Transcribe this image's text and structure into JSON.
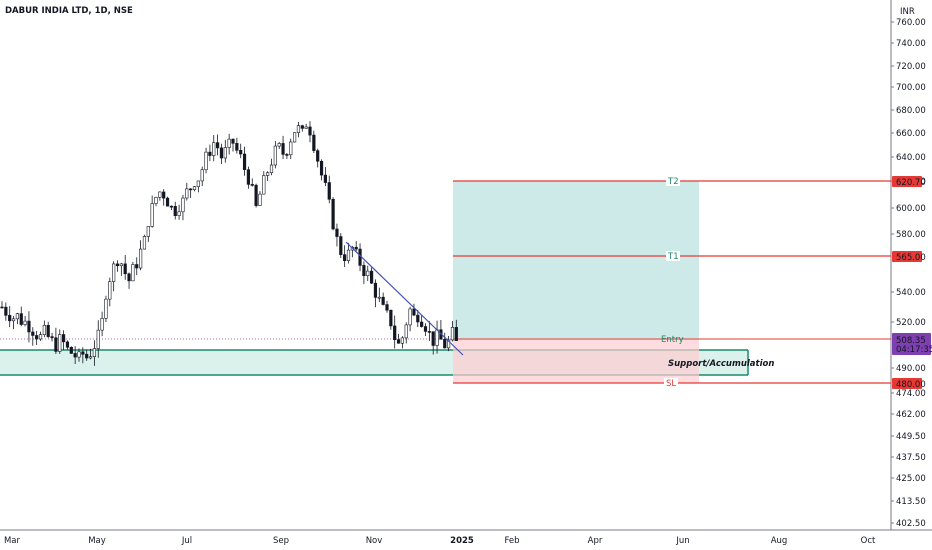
{
  "header": {
    "symbol": "DABUR INDIA LTD, 1D, NSE"
  },
  "price_axis": {
    "currency": "INR"
  },
  "colors": {
    "up": "#131722",
    "down": "#131722",
    "target_line": "#e53935",
    "target_zone": "#b2dfdb",
    "stop_zone": "#ffcdd2",
    "support_border": "#1b8a6b",
    "trendline": "#3f51b5",
    "last_price_badge": "#7e3fb0"
  },
  "chart_data": {
    "type": "candlestick",
    "title": "DABUR INDIA LTD, 1D, NSE",
    "currency": "INR",
    "y_ticks": [
      "402.50",
      "413.50",
      "425.00",
      "437.50",
      "449.50",
      "462.00",
      "474.00",
      "490.00",
      "520.00",
      "540.00",
      "580.00",
      "600.00",
      "620.00",
      "640.00",
      "660.00",
      "680.00",
      "700.00",
      "720.00",
      "740.00",
      "760.00"
    ],
    "x_ticks": [
      {
        "label": "Mar",
        "bold": false
      },
      {
        "label": "May",
        "bold": false
      },
      {
        "label": "Jul",
        "bold": false
      },
      {
        "label": "Sep",
        "bold": false
      },
      {
        "label": "Nov",
        "bold": false
      },
      {
        "label": "2025",
        "bold": true
      },
      {
        "label": "Feb",
        "bold": false
      },
      {
        "label": "Apr",
        "bold": false
      },
      {
        "label": "Jun",
        "bold": false
      },
      {
        "label": "Aug",
        "bold": false
      },
      {
        "label": "Oct",
        "bold": false
      }
    ],
    "price_path": [
      [
        0,
        530
      ],
      [
        1,
        527
      ],
      [
        2,
        525
      ],
      [
        3,
        523
      ],
      [
        4,
        524
      ],
      [
        5,
        521
      ],
      [
        6,
        520
      ],
      [
        7,
        518
      ],
      [
        8,
        515
      ],
      [
        9,
        512
      ],
      [
        10,
        510
      ],
      [
        11,
        513
      ],
      [
        12,
        510
      ],
      [
        13,
        507
      ],
      [
        14,
        505
      ],
      [
        15,
        508
      ],
      [
        16,
        506
      ],
      [
        17,
        502
      ],
      [
        18,
        500
      ],
      [
        19,
        498
      ],
      [
        20,
        496
      ],
      [
        21,
        499
      ],
      [
        22,
        497
      ],
      [
        23,
        500
      ],
      [
        24,
        505
      ],
      [
        25,
        510
      ],
      [
        26,
        520
      ],
      [
        27,
        540
      ],
      [
        28,
        550
      ],
      [
        29,
        557
      ],
      [
        30,
        563
      ],
      [
        31,
        560
      ],
      [
        32,
        553
      ],
      [
        33,
        548
      ],
      [
        34,
        555
      ],
      [
        35,
        560
      ],
      [
        36,
        568
      ],
      [
        37,
        575
      ],
      [
        38,
        590
      ],
      [
        39,
        600
      ],
      [
        40,
        608
      ],
      [
        41,
        612
      ],
      [
        42,
        610
      ],
      [
        43,
        605
      ],
      [
        44,
        600
      ],
      [
        45,
        598
      ],
      [
        46,
        602
      ],
      [
        47,
        605
      ],
      [
        48,
        612
      ],
      [
        49,
        615
      ],
      [
        50,
        620
      ],
      [
        51,
        622
      ],
      [
        52,
        630
      ],
      [
        53,
        640
      ],
      [
        54,
        645
      ],
      [
        55,
        652
      ],
      [
        56,
        648
      ],
      [
        57,
        640
      ],
      [
        58,
        645
      ],
      [
        59,
        650
      ],
      [
        60,
        652
      ],
      [
        61,
        645
      ],
      [
        62,
        640
      ],
      [
        63,
        630
      ],
      [
        64,
        622
      ],
      [
        65,
        612
      ],
      [
        66,
        600
      ],
      [
        67,
        610
      ],
      [
        68,
        620
      ],
      [
        69,
        628
      ],
      [
        70,
        636
      ],
      [
        71,
        645
      ],
      [
        72,
        648
      ],
      [
        73,
        643
      ],
      [
        74,
        646
      ],
      [
        75,
        655
      ],
      [
        76,
        662
      ],
      [
        77,
        664
      ],
      [
        78,
        660
      ],
      [
        79,
        668
      ],
      [
        80,
        662
      ],
      [
        81,
        650
      ],
      [
        82,
        638
      ],
      [
        83,
        625
      ],
      [
        84,
        615
      ],
      [
        85,
        602
      ],
      [
        86,
        588
      ],
      [
        87,
        576
      ],
      [
        88,
        568
      ],
      [
        89,
        565
      ],
      [
        90,
        566
      ],
      [
        91,
        570
      ],
      [
        92,
        565
      ],
      [
        93,
        560
      ],
      [
        94,
        555
      ],
      [
        95,
        552
      ],
      [
        96,
        545
      ],
      [
        97,
        540
      ],
      [
        98,
        534
      ],
      [
        99,
        528
      ],
      [
        100,
        524
      ],
      [
        101,
        520
      ],
      [
        102,
        510
      ],
      [
        103,
        505
      ],
      [
        104,
        510
      ],
      [
        105,
        520
      ],
      [
        106,
        528
      ],
      [
        107,
        523
      ],
      [
        108,
        525
      ],
      [
        109,
        522
      ],
      [
        110,
        518
      ],
      [
        111,
        512
      ],
      [
        112,
        508
      ],
      [
        113,
        510
      ],
      [
        114,
        508
      ],
      [
        115,
        505
      ],
      [
        116,
        507
      ],
      [
        117,
        512
      ],
      [
        118,
        506
      ]
    ],
    "levels": {
      "T2": "620.70",
      "T1": "565.00",
      "Entry": "508.35",
      "SL": "480.00",
      "support_label": "Support/Accumulation"
    },
    "last_price": {
      "value": "508.35",
      "countdown": "04:17:35"
    }
  }
}
